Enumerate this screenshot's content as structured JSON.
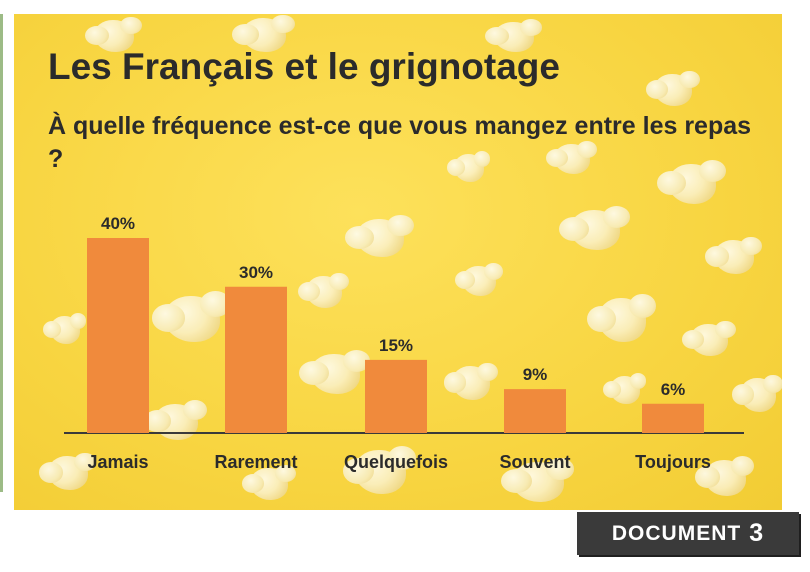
{
  "title": "Les Français et le grignotage",
  "subtitle": "À quelle fréquence est-ce que vous mangez entre les repas ?",
  "badge": {
    "label": "DOCUMENT",
    "number": "3"
  },
  "colors": {
    "bar": "#f08a3c",
    "text": "#2b2b2b",
    "background": "#f8d541",
    "badge": "#3a3a3a"
  },
  "chart_data": {
    "type": "bar",
    "title": "Les Français et le grignotage",
    "subtitle": "À quelle fréquence est-ce que vous mangez entre les repas ?",
    "categories": [
      "Jamais",
      "Rarement",
      "Quelquefois",
      "Souvent",
      "Toujours"
    ],
    "values": [
      40,
      30,
      15,
      9,
      6
    ],
    "value_labels": [
      "40%",
      "30%",
      "15%",
      "9%",
      "6%"
    ],
    "unit": "%",
    "ylim": [
      0,
      40
    ],
    "grid": false,
    "legend": "none"
  }
}
